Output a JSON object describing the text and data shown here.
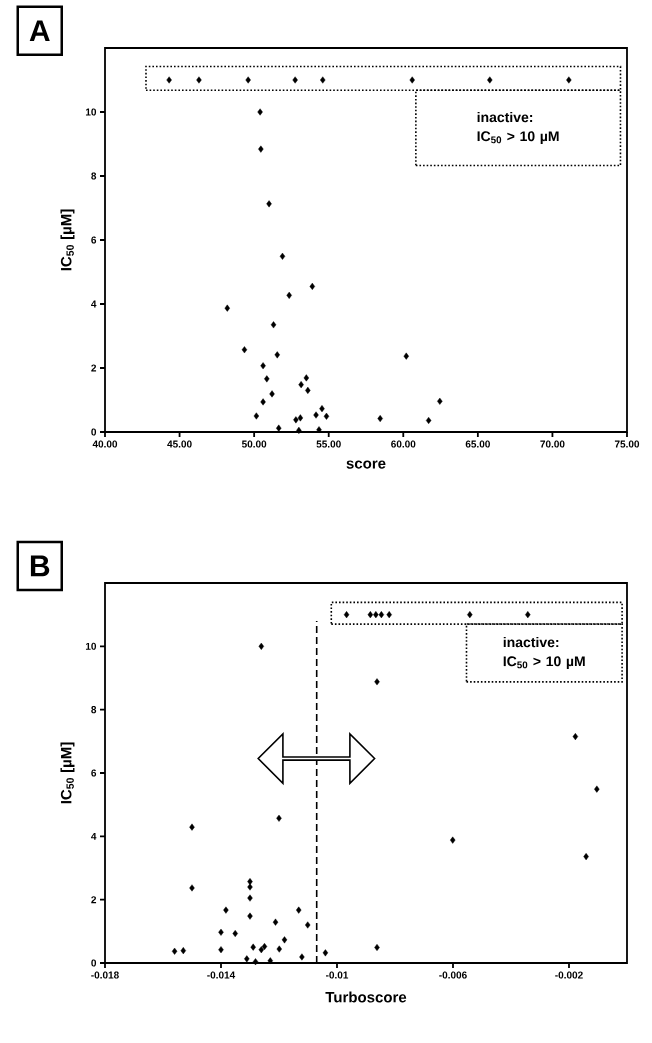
{
  "chart_data": [
    {
      "type": "scatter",
      "title": "A",
      "xlabel": "score",
      "ylabel": "IC$_{50}$ [µM]",
      "marker": "diamond",
      "color": "#000000",
      "x": [
        44.3,
        46.3,
        49.6,
        52.75,
        54.6,
        60.6,
        65.8,
        71.1,
        50.4,
        50.45,
        51.0,
        51.9,
        53.9,
        52.35,
        48.2,
        51.3,
        49.35,
        51.55,
        60.2,
        50.6,
        53.5,
        50.85,
        53.15,
        53.6,
        51.2,
        50.6,
        62.45,
        54.55,
        50.15,
        54.15,
        54.85,
        52.8,
        53.1,
        58.45,
        61.7,
        51.65,
        53.0,
        54.35
      ],
      "values": [
        11,
        11,
        11,
        11,
        11,
        11,
        11,
        11,
        10.0,
        8.84,
        7.13,
        5.49,
        4.55,
        4.27,
        3.87,
        3.35,
        2.57,
        2.41,
        2.37,
        2.07,
        1.69,
        1.66,
        1.48,
        1.3,
        1.19,
        0.94,
        0.96,
        0.73,
        0.5,
        0.53,
        0.49,
        0.38,
        0.44,
        0.42,
        0.36,
        0.12,
        0.05,
        0.07
      ],
      "xlim": [
        40,
        75
      ],
      "ylim": [
        0,
        12
      ],
      "xticks": [
        {
          "value": 40,
          "label": "40.00"
        },
        {
          "value": 45,
          "label": "45.00"
        },
        {
          "value": 50,
          "label": "50.00"
        },
        {
          "value": 55,
          "label": "55.00"
        },
        {
          "value": 60,
          "label": "60.00"
        },
        {
          "value": 65,
          "label": "65.00"
        },
        {
          "value": 70,
          "label": "70.00"
        },
        {
          "value": 75,
          "label": "75.00"
        }
      ],
      "yticks": [
        0,
        2,
        4,
        6,
        8,
        10
      ],
      "annotations": [
        "inactive: IC$_{50}$ > 10 µM"
      ]
    },
    {
      "type": "scatter",
      "title": "B",
      "xlabel": "Turboscore",
      "ylabel": "IC$_{50}$ [µM]",
      "marker": "diamond",
      "color": "#000000",
      "x": [
        -0.00967,
        -0.00885,
        -0.00866,
        -0.00847,
        -0.0082,
        -0.00542,
        -0.00342,
        -0.01261,
        -0.00862,
        -0.00178,
        -0.00104,
        -0.015,
        -0.012,
        -0.00601,
        -0.00141,
        -0.015,
        -0.013,
        -0.013,
        -0.013,
        -0.01383,
        -0.01132,
        -0.013,
        -0.01212,
        -0.01101,
        -0.014,
        -0.01351,
        -0.01181,
        -0.01289,
        -0.0125,
        -0.01261,
        -0.01199,
        -0.014,
        -0.0156,
        -0.0153,
        -0.0104,
        -0.00862,
        -0.01121,
        -0.01311,
        -0.01281,
        -0.0123
      ],
      "values": [
        11,
        11,
        11,
        11,
        11,
        11,
        11,
        10.0,
        8.88,
        7.15,
        5.49,
        4.29,
        4.57,
        3.88,
        3.36,
        2.37,
        2.57,
        2.4,
        2.05,
        1.67,
        1.67,
        1.48,
        1.29,
        1.2,
        0.97,
        0.93,
        0.73,
        0.5,
        0.52,
        0.42,
        0.44,
        0.42,
        0.37,
        0.39,
        0.32,
        0.49,
        0.19,
        0.13,
        0.04,
        0.07
      ],
      "xlim": [
        -0.018,
        0
      ],
      "ylim": [
        0,
        12
      ],
      "xticks": [
        -0.018,
        -0.014,
        -0.01,
        -0.006,
        -0.002
      ],
      "yticks": [
        0,
        2,
        4,
        6,
        8,
        10
      ],
      "ref_lines": [
        {
          "axis": "x",
          "value": -0.0107,
          "line_style": "dashed"
        }
      ],
      "annotations": [
        "inactive: IC$_{50}$ > 10 µM"
      ]
    }
  ]
}
